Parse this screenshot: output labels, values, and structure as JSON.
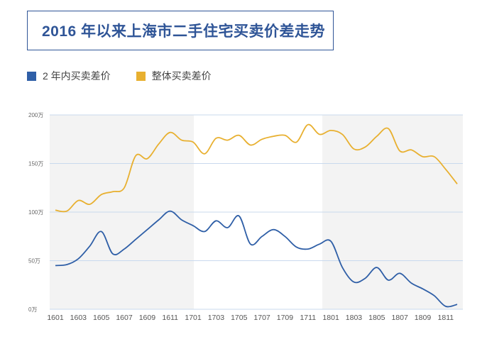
{
  "title": "2016 年以来上海市二手住宅买卖价差走势",
  "legend": {
    "items": [
      {
        "label": "2 年内买卖差价",
        "color": "#2f5fa7"
      },
      {
        "label": "整体买卖差价",
        "color": "#e8b030"
      }
    ]
  },
  "chart_data": {
    "type": "line",
    "title": "2016 年以来上海市二手住宅买卖价差走势",
    "xlabel": "",
    "ylabel": "",
    "ylim": [
      0,
      200
    ],
    "y_ticks": [
      0,
      50,
      100,
      150,
      200
    ],
    "y_tick_labels": [
      "0万",
      "50万",
      "100万",
      "150万",
      "200万"
    ],
    "x": [
      "1601",
      "1602",
      "1603",
      "1604",
      "1605",
      "1606",
      "1607",
      "1608",
      "1609",
      "1610",
      "1611",
      "1612",
      "1701",
      "1702",
      "1703",
      "1704",
      "1705",
      "1706",
      "1707",
      "1708",
      "1709",
      "1710",
      "1711",
      "1712",
      "1801",
      "1802",
      "1803",
      "1804",
      "1805",
      "1806",
      "1807",
      "1808",
      "1809",
      "1810",
      "1811",
      "1812"
    ],
    "x_tick_labels": [
      "1601",
      "1603",
      "1605",
      "1607",
      "1609",
      "1611",
      "1701",
      "1703",
      "1705",
      "1707",
      "1709",
      "1711",
      "1801",
      "1803",
      "1805",
      "1807",
      "1809",
      "1811"
    ],
    "shaded_ranges": [
      [
        "1601",
        "1612"
      ],
      [
        "1801",
        "1812"
      ]
    ],
    "series": [
      {
        "name": "2 年内买卖差价",
        "color": "#2f5fa7",
        "values": [
          45,
          46,
          52,
          65,
          80,
          57,
          62,
          72,
          82,
          92,
          101,
          92,
          86,
          80,
          91,
          84,
          96,
          67,
          75,
          82,
          75,
          64,
          62,
          67,
          70,
          43,
          28,
          32,
          43,
          30,
          37,
          27,
          21,
          14,
          3,
          5
        ]
      },
      {
        "name": "整体买卖差价",
        "color": "#e8b030",
        "values": [
          102,
          101,
          112,
          108,
          118,
          121,
          125,
          158,
          155,
          170,
          182,
          174,
          172,
          160,
          176,
          174,
          179,
          169,
          175,
          178,
          179,
          172,
          190,
          180,
          184,
          180,
          165,
          167,
          178,
          186,
          163,
          164,
          157,
          157,
          144,
          129
        ]
      }
    ],
    "grid": "horizontal"
  }
}
